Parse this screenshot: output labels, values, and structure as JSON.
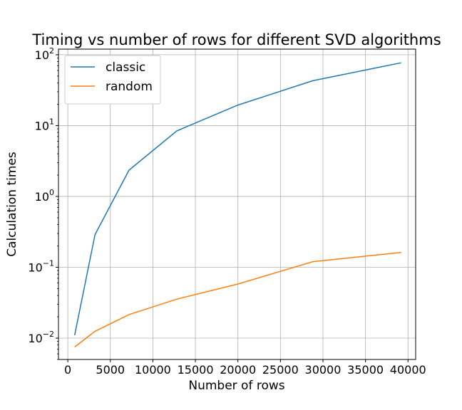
{
  "chart_data": {
    "type": "line",
    "title": "Timing vs number of rows for different SVD algorithms",
    "xlabel": "Number of rows",
    "ylabel": "Calculation times",
    "xlim": [
      -1100,
      40900
    ],
    "ylim": [
      0.005,
      120
    ],
    "yscale": "log",
    "grid": true,
    "legend_position": "upper-left",
    "x_ticks": [
      0,
      5000,
      10000,
      15000,
      20000,
      25000,
      30000,
      35000,
      40000
    ],
    "x_tick_labels": [
      "0",
      "5000",
      "10000",
      "15000",
      "20000",
      "25000",
      "30000",
      "35000",
      "40000"
    ],
    "y_ticks": [
      {
        "value": 0.01,
        "base": "10",
        "exp": "−2"
      },
      {
        "value": 0.1,
        "base": "10",
        "exp": "−1"
      },
      {
        "value": 1,
        "base": "10",
        "exp": "0"
      },
      {
        "value": 10,
        "base": "10",
        "exp": "1"
      },
      {
        "value": 100,
        "base": "10",
        "exp": "2"
      }
    ],
    "series": [
      {
        "name": "classic",
        "color": "#1f77b4",
        "x": [
          800,
          3200,
          7200,
          12800,
          20000,
          28800,
          39200
        ],
        "y": [
          0.011,
          0.29,
          2.35,
          8.4,
          19.5,
          43,
          77
        ]
      },
      {
        "name": "random",
        "color": "#ff7f0e",
        "x": [
          800,
          3200,
          7200,
          12800,
          20000,
          28800,
          39200
        ],
        "y": [
          0.0075,
          0.0125,
          0.0215,
          0.0355,
          0.058,
          0.12,
          0.162
        ]
      }
    ]
  }
}
